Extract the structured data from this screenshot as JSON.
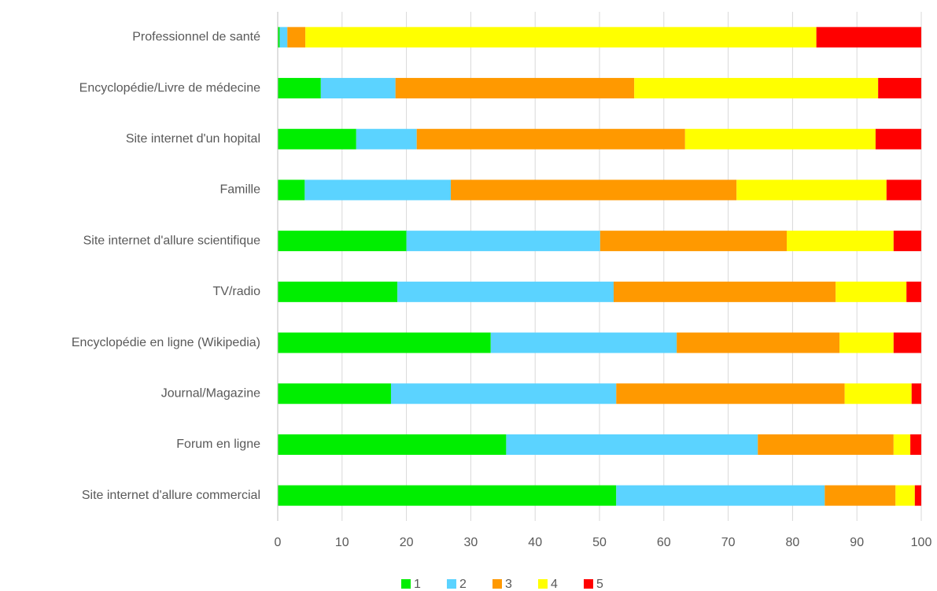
{
  "chart_data": {
    "type": "stacked_barh",
    "categories": [
      "Professionnel de santé",
      "Encyclopédie/Livre de médecine",
      "Site internet d'un hopital",
      "Famille",
      "Site internet d'allure scientifique",
      "TV/radio",
      "Encyclopédie en ligne (Wikipedia)",
      "Journal/Magazine",
      "Forum en ligne",
      "Site internet d'allure commercial"
    ],
    "series": [
      {
        "name": "1",
        "color": "#00ee00",
        "values": [
          0.3,
          6.7,
          12.2,
          4.2,
          20.0,
          18.6,
          33.1,
          17.6,
          35.5,
          52.6
        ]
      },
      {
        "name": "2",
        "color": "#5bd3ff",
        "values": [
          1.2,
          11.6,
          9.4,
          22.7,
          30.1,
          33.6,
          28.9,
          35.0,
          39.1,
          32.4
        ]
      },
      {
        "name": "3",
        "color": "#ff9900",
        "values": [
          2.8,
          37.1,
          41.7,
          44.4,
          29.0,
          34.5,
          25.3,
          35.5,
          21.1,
          11.0
        ]
      },
      {
        "name": "4",
        "color": "#ffff00",
        "values": [
          79.4,
          37.9,
          29.6,
          23.3,
          16.6,
          11.0,
          8.4,
          10.4,
          2.6,
          3.0
        ]
      },
      {
        "name": "5",
        "color": "#ff0000",
        "values": [
          16.3,
          6.7,
          7.1,
          5.4,
          4.3,
          2.3,
          4.3,
          1.5,
          1.7,
          1.0
        ]
      }
    ],
    "xlim": [
      0,
      100
    ],
    "xticks": [
      0,
      10,
      20,
      30,
      40,
      50,
      60,
      70,
      80,
      90,
      100
    ],
    "grid": true,
    "legend": "bottom"
  }
}
